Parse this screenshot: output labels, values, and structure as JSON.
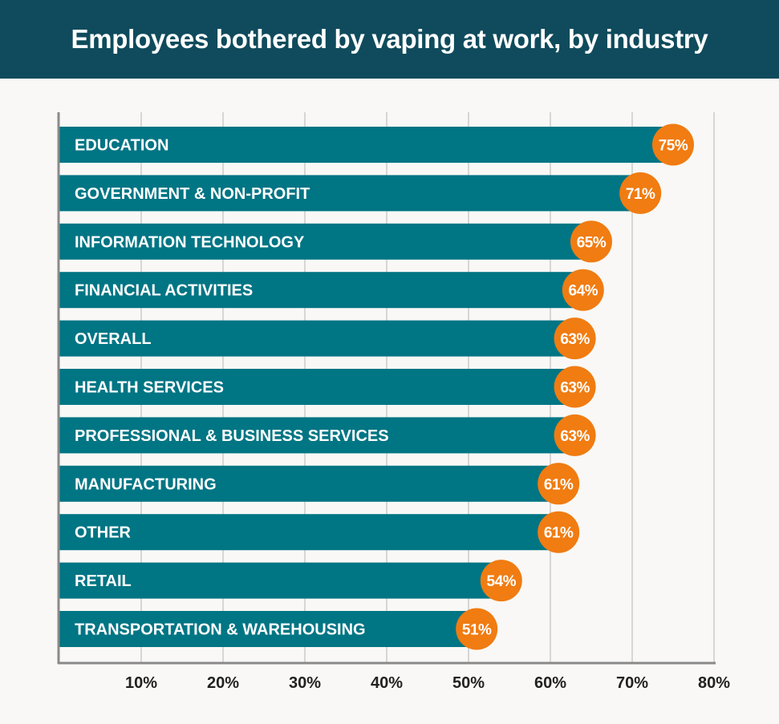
{
  "header": {
    "title": "Employees bothered by vaping at work, by industry"
  },
  "colors": {
    "header_bg": "#0f4b5c",
    "bar": "#007584",
    "badge": "#f07c12",
    "grid": "#d6d6d6",
    "axis": "#8a8a8a",
    "background": "#f9f8f6"
  },
  "chart_data": {
    "type": "bar",
    "orientation": "horizontal",
    "title": "Employees bothered by vaping at work, by industry",
    "xlabel": "",
    "ylabel": "",
    "xlim": [
      0,
      80
    ],
    "grid": true,
    "x_ticks": [
      "10%",
      "20%",
      "30%",
      "40%",
      "50%",
      "60%",
      "70%",
      "80%"
    ],
    "categories": [
      "EDUCATION",
      "GOVERNMENT & NON-PROFIT",
      "INFORMATION TECHNOLOGY",
      "FINANCIAL ACTIVITIES",
      "OVERALL",
      "HEALTH SERVICES",
      "PROFESSIONAL & BUSINESS SERVICES",
      "MANUFACTURING",
      "OTHER",
      "RETAIL",
      "TRANSPORTATION & WAREHOUSING"
    ],
    "values": [
      75,
      71,
      65,
      64,
      63,
      63,
      63,
      61,
      61,
      54,
      51
    ],
    "value_labels": [
      "75%",
      "71%",
      "65%",
      "64%",
      "63%",
      "63%",
      "63%",
      "61%",
      "61%",
      "54%",
      "51%"
    ]
  }
}
